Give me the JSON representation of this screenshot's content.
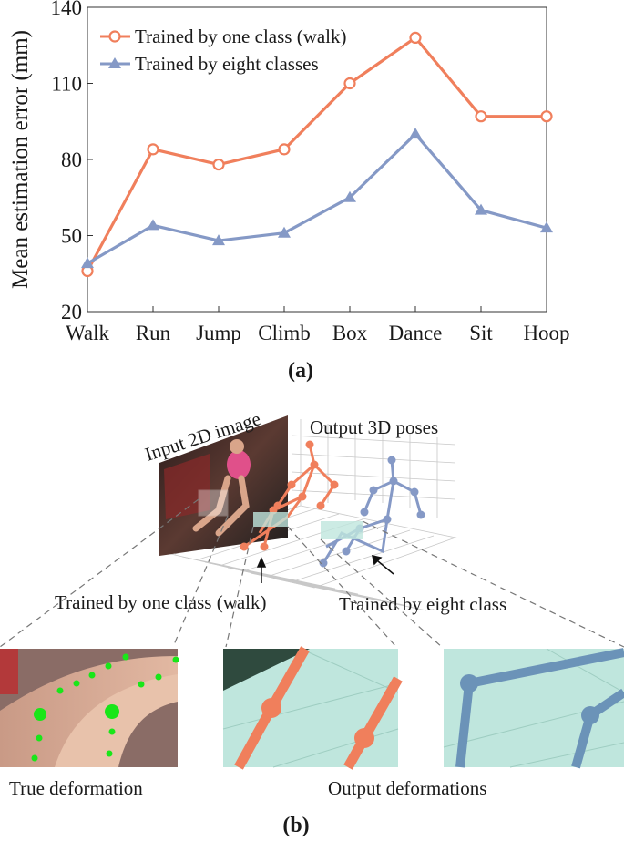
{
  "chart_data": {
    "type": "line",
    "categories": [
      "Walk",
      "Run",
      "Jump",
      "Climb",
      "Box",
      "Dance",
      "Sit",
      "Hoop"
    ],
    "ylabel": "Mean estimation error (mm)",
    "ylim": [
      20,
      140
    ],
    "yticks": [
      20,
      50,
      80,
      110,
      140
    ],
    "grid": false,
    "legend_position": "top-left",
    "series": [
      {
        "name": "Trained by one class (walk)",
        "values": [
          36,
          84,
          78,
          84,
          110,
          128,
          97,
          97
        ],
        "color": "#f07f5c",
        "marker": "circle"
      },
      {
        "name": "Trained by eight classes",
        "values": [
          39,
          54,
          48,
          51,
          65,
          90,
          60,
          53
        ],
        "color": "#8599c6",
        "marker": "triangle"
      }
    ]
  },
  "panel_a_label": "(a)",
  "panel_b": {
    "label": "(b)",
    "input_label": "Input 2D image",
    "output_label": "Output 3D poses",
    "one_class_label": "Trained by one class (walk)",
    "eight_class_label": "Trained by eight class",
    "true_deformation_label": "True deformation",
    "output_deformations_label": "Output deformations"
  },
  "colors": {
    "orange": "#f07f5c",
    "blue": "#8599c6",
    "teal": "#bfe6dd"
  }
}
